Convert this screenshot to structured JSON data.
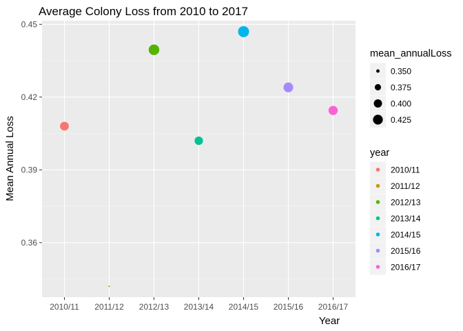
{
  "chart_data": {
    "type": "scatter",
    "title": "Average Colony Loss from 2010 to 2017",
    "xlabel": "Year",
    "ylabel": "Mean Annual Loss",
    "categories": [
      "2010/11",
      "2011/12",
      "2012/13",
      "2013/14",
      "2014/15",
      "2015/16",
      "2016/17"
    ],
    "values": [
      0.408,
      0.342,
      0.4395,
      0.402,
      0.447,
      0.424,
      0.4145
    ],
    "colors": [
      "#F8766D",
      "#C49A00",
      "#53B400",
      "#00C094",
      "#00B6EB",
      "#A58AFF",
      "#FB61D7"
    ],
    "yticks": [
      0.36,
      0.39,
      0.42,
      0.45
    ],
    "ytick_labels": [
      "0.36",
      "0.39",
      "0.42",
      "0.45"
    ],
    "ylim": [
      0.3375,
      0.4515
    ],
    "size_range": [
      0.342,
      0.447
    ],
    "grid": true,
    "background": "#EBEBEB",
    "legend_position": "right",
    "size_legend": {
      "title": "mean_annualLoss",
      "breaks": [
        0.35,
        0.375,
        0.4,
        0.425
      ],
      "labels": [
        "0.350",
        "0.375",
        "0.400",
        "0.425"
      ]
    },
    "color_legend": {
      "title": "year"
    }
  }
}
